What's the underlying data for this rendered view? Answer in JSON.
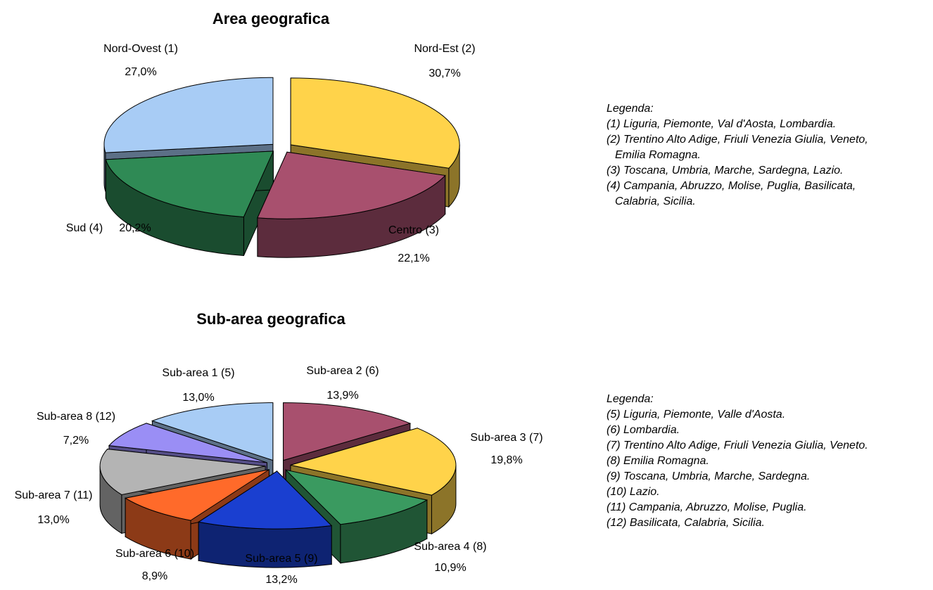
{
  "chart_data": [
    {
      "type": "pie",
      "title": "Area geografica",
      "categories": [
        "Nord-Est (2)",
        "Centro (3)",
        "Sud (4)",
        "Nord-Ovest (1)"
      ],
      "values": [
        30.7,
        22.1,
        20.2,
        27.0
      ],
      "value_labels": [
        "30,7%",
        "22,1%",
        "20,2%",
        "27,0%"
      ],
      "colors": [
        "#ffd34a",
        "#a8506e",
        "#2f8a55",
        "#a8ccf5"
      ],
      "legend_title": "Legenda:",
      "legend_items": [
        "(1) Liguria, Piemonte, Val d'Aosta, Lombardia.",
        "(2) Trentino Alto Adige, Friuli Venezia Giulia, Veneto,",
        "Emilia Romagna.",
        "(3) Toscana, Umbria, Marche, Sardegna, Lazio.",
        "(4) Campania, Abruzzo, Molise, Puglia, Basilicata,",
        "Calabria, Sicilia."
      ]
    },
    {
      "type": "pie",
      "title": "Sub-area geografica",
      "categories": [
        "Sub-area 2 (6)",
        "Sub-area 3 (7)",
        "Sub-area 4 (8)",
        "Sub-area 5 (9)",
        "Sub-area 6 (10)",
        "Sub-area 7 (11)",
        "Sub-area 8 (12)",
        "Sub-area 1 (5)"
      ],
      "values": [
        13.9,
        19.8,
        10.9,
        13.2,
        8.9,
        13.0,
        7.2,
        13.0
      ],
      "value_labels": [
        "13,9%",
        "19,8%",
        "10,9%",
        "13,2%",
        "8,9%",
        "13,0%",
        "7,2%",
        "13,0%"
      ],
      "colors": [
        "#a8506e",
        "#ffd34a",
        "#3a9a60",
        "#1a3fd0",
        "#ff6a2a",
        "#b4b4b4",
        "#9a8ef5",
        "#a8ccf5"
      ],
      "legend_title": "Legenda:",
      "legend_items": [
        "(5) Liguria, Piemonte, Valle d'Aosta.",
        "(6) Lombardia.",
        "(7) Trentino Alto Adige, Friuli Venezia Giulia, Veneto.",
        "(8) Emilia Romagna.",
        "(9) Toscana, Umbria, Marche, Sardegna.",
        "(10) Lazio.",
        "(11) Campania, Abruzzo, Molise, Puglia.",
        "(12) Basilicata, Calabria, Sicilia."
      ]
    }
  ]
}
